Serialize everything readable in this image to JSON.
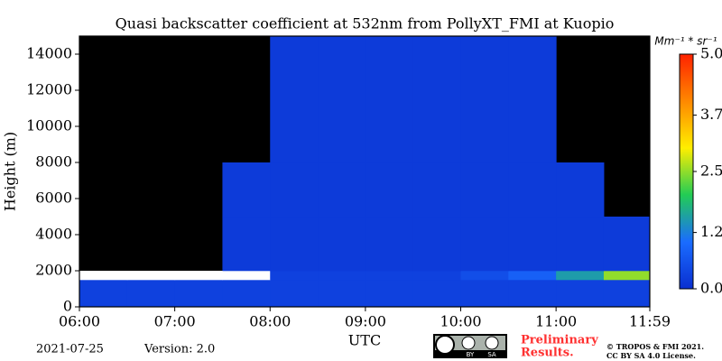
{
  "chart_data": {
    "type": "heatmap",
    "title": "Quasi backscatter coefficient at 532nm from PollyXT_FMI at Kuopio",
    "xlabel": "UTC",
    "ylabel": "Height (m)",
    "xlim": [
      6,
      11.983333
    ],
    "ylim": [
      0,
      15000
    ],
    "xticks": [
      {
        "value": 6,
        "label": "06:00"
      },
      {
        "value": 7,
        "label": "07:00"
      },
      {
        "value": 8,
        "label": "08:00"
      },
      {
        "value": 9,
        "label": "09:00"
      },
      {
        "value": 10,
        "label": "10:00"
      },
      {
        "value": 11,
        "label": "11:00"
      },
      {
        "value": 11.983333,
        "label": "11:59"
      }
    ],
    "yticks": [
      0,
      2000,
      4000,
      6000,
      8000,
      10000,
      12000,
      14000
    ],
    "xbins": [
      6,
      6.5,
      7,
      7.5,
      8,
      8.5,
      9,
      9.5,
      10,
      10.5,
      11,
      11.5,
      11.983333
    ],
    "ybins": [
      0,
      1500,
      2000,
      5000,
      8000,
      15000
    ],
    "values": [
      [
        0.3,
        0.3,
        0.3,
        0.3,
        0.3,
        0.3,
        0.3,
        0.3,
        0.3,
        0.3,
        0.3,
        0.3
      ],
      [
        6,
        6,
        6,
        6,
        0.3,
        0.3,
        0.3,
        0.3,
        0.5,
        0.8,
        1.5,
        2.5
      ],
      [
        null,
        null,
        null,
        0.2,
        0.2,
        0.2,
        0.2,
        0.2,
        0.2,
        0.2,
        0.2,
        0.2
      ],
      [
        null,
        null,
        null,
        0.2,
        0.2,
        0.2,
        0.2,
        0.2,
        0.2,
        0.2,
        0.2,
        null
      ],
      [
        null,
        null,
        null,
        null,
        0.2,
        0.2,
        0.2,
        0.2,
        0.2,
        0.2,
        null,
        null
      ]
    ],
    "clim": [
      0,
      5
    ],
    "cticks": [
      {
        "value": 0,
        "label": "0.0"
      },
      1.2,
      2.5,
      3.7,
      {
        "value": 5,
        "label": "5.0"
      }
    ],
    "colorbar_label": "Mm⁻¹ * sr⁻¹",
    "colormap": [
      "#0a2fd0",
      "#1a6cff",
      "#22cc55",
      "#ffee00",
      "#ff8800",
      "#ff2200"
    ],
    "over_color": "#ffffff",
    "bad_color": "#000000"
  },
  "footer": {
    "date": "2021-07-25",
    "version": "Version: 2.0",
    "badge": [
      "BY",
      "SA"
    ],
    "notice": [
      "Preliminary",
      "Results."
    ],
    "copyright": [
      "© TROPOS & FMI 2021.",
      "CC BY SA 4.0 License."
    ]
  }
}
